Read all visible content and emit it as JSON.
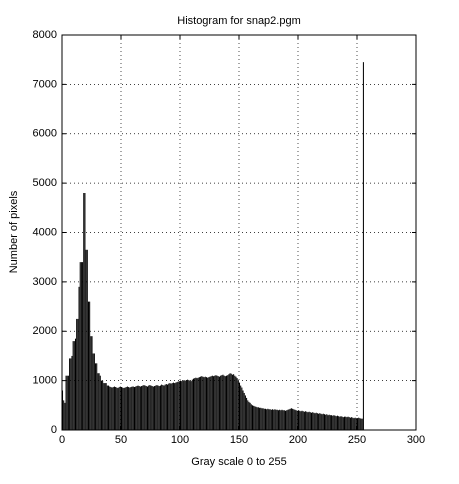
{
  "chart_data": {
    "type": "histogram",
    "title": "Histogram for snap2.pgm",
    "x_label": "Gray scale 0 to 255",
    "y_label": "Number of pixels",
    "color": "#000000",
    "grid": true,
    "xlim": [
      0,
      300
    ],
    "xticks": [
      0,
      50,
      100,
      150,
      200,
      250,
      300
    ],
    "ylim": [
      0,
      8000
    ],
    "yticks": [
      0,
      1000,
      2000,
      3000,
      4000,
      5000,
      6000,
      7000,
      8000
    ],
    "bins": [
      0,
      1,
      2,
      3,
      4,
      5,
      6,
      7,
      8,
      9,
      10,
      11,
      12,
      13,
      14,
      15,
      16,
      17,
      18,
      19,
      20,
      21,
      22,
      23,
      24,
      25,
      26,
      27,
      28,
      29,
      30,
      31,
      32,
      33,
      34,
      35,
      36,
      37,
      38,
      39,
      40,
      41,
      42,
      43,
      44,
      45,
      46,
      47,
      48,
      49,
      50,
      51,
      52,
      53,
      54,
      55,
      56,
      57,
      58,
      59,
      60,
      61,
      62,
      63,
      64,
      65,
      66,
      67,
      68,
      69,
      70,
      71,
      72,
      73,
      74,
      75,
      76,
      77,
      78,
      79,
      80,
      81,
      82,
      83,
      84,
      85,
      86,
      87,
      88,
      89,
      90,
      91,
      92,
      93,
      94,
      95,
      96,
      97,
      98,
      99,
      100,
      101,
      102,
      103,
      104,
      105,
      106,
      107,
      108,
      109,
      110,
      111,
      112,
      113,
      114,
      115,
      116,
      117,
      118,
      119,
      120,
      121,
      122,
      123,
      124,
      125,
      126,
      127,
      128,
      129,
      130,
      131,
      132,
      133,
      134,
      135,
      136,
      137,
      138,
      139,
      140,
      141,
      142,
      143,
      144,
      145,
      146,
      147,
      148,
      149,
      150,
      151,
      152,
      153,
      154,
      155,
      156,
      157,
      158,
      159,
      160,
      161,
      162,
      163,
      164,
      165,
      166,
      167,
      168,
      169,
      170,
      171,
      172,
      173,
      174,
      175,
      176,
      177,
      178,
      179,
      180,
      181,
      182,
      183,
      184,
      185,
      186,
      187,
      188,
      189,
      190,
      191,
      192,
      193,
      194,
      195,
      196,
      197,
      198,
      199,
      200,
      201,
      202,
      203,
      204,
      205,
      206,
      207,
      208,
      209,
      210,
      211,
      212,
      213,
      214,
      215,
      216,
      217,
      218,
      219,
      220,
      221,
      222,
      223,
      224,
      225,
      226,
      227,
      228,
      229,
      230,
      231,
      232,
      233,
      234,
      235,
      236,
      237,
      238,
      239,
      240,
      241,
      242,
      243,
      244,
      245,
      246,
      247,
      248,
      249,
      250,
      251,
      252,
      253,
      254,
      255,
      256
    ],
    "values": [
      800,
      600,
      550,
      1100,
      1100,
      1100,
      1450,
      1450,
      1500,
      1800,
      1800,
      1850,
      2250,
      2250,
      2900,
      3400,
      3400,
      3400,
      4800,
      4800,
      3650,
      3650,
      2600,
      2600,
      1900,
      1900,
      1550,
      1550,
      1350,
      1350,
      1150,
      1150,
      1100,
      1000,
      1000,
      950,
      950,
      950,
      900,
      900,
      880,
      870,
      860,
      870,
      880,
      870,
      860,
      850,
      870,
      880,
      870,
      860,
      850,
      860,
      870,
      880,
      870,
      860,
      870,
      880,
      880,
      870,
      880,
      890,
      900,
      890,
      880,
      890,
      900,
      910,
      900,
      890,
      880,
      900,
      910,
      900,
      890,
      880,
      890,
      900,
      910,
      900,
      890,
      900,
      920,
      910,
      900,
      920,
      930,
      920,
      940,
      950,
      940,
      950,
      960,
      950,
      960,
      970,
      980,
      990,
      1000,
      990,
      1000,
      1010,
      1000,
      1010,
      1020,
      1010,
      1000,
      990,
      1020,
      1040,
      1050,
      1060,
      1050,
      1060,
      1070,
      1080,
      1090,
      1080,
      1070,
      1080,
      1070,
      1060,
      1070,
      1080,
      1090,
      1100,
      1090,
      1100,
      1110,
      1100,
      1090,
      1080,
      1100,
      1110,
      1120,
      1100,
      1090,
      1100,
      1110,
      1130,
      1150,
      1140,
      1120,
      1130,
      1100,
      1080,
      1050,
      1000,
      960,
      900,
      860,
      800,
      750,
      700,
      650,
      600,
      570,
      550,
      520,
      500,
      490,
      480,
      470,
      460,
      460,
      450,
      450,
      440,
      440,
      430,
      430,
      420,
      430,
      420,
      420,
      410,
      420,
      410,
      420,
      410,
      410,
      400,
      410,
      400,
      410,
      400,
      400,
      390,
      400,
      410,
      420,
      430,
      440,
      430,
      420,
      410,
      400,
      390,
      400,
      390,
      380,
      390,
      380,
      370,
      380,
      370,
      360,
      370,
      360,
      350,
      360,
      350,
      340,
      350,
      340,
      330,
      340,
      330,
      320,
      330,
      320,
      310,
      320,
      300,
      310,
      300,
      300,
      290,
      300,
      290,
      280,
      290,
      280,
      270,
      280,
      270,
      260,
      270,
      270,
      260,
      270,
      260,
      250,
      260,
      250,
      240,
      250,
      240,
      240,
      250,
      240,
      230,
      230,
      7450
    ]
  }
}
